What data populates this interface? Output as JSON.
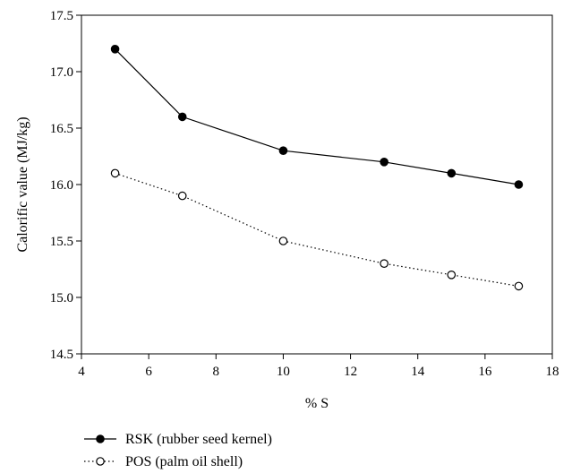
{
  "chart_data": {
    "type": "line",
    "xlabel": "% S",
    "ylabel": "Calorific value (MJ/kg)",
    "xlim": [
      4,
      18
    ],
    "ylim": [
      14.5,
      17.5
    ],
    "xticks": [
      "4",
      "6",
      "8",
      "10",
      "12",
      "14",
      "16",
      "18"
    ],
    "yticks": [
      "14.5",
      "15.0",
      "15.5",
      "16.0",
      "16.5",
      "17.0",
      "17.5"
    ],
    "grid": false,
    "legend_position": "bottom-left",
    "series": [
      {
        "name": "RSK (rubber seed kernel)",
        "line_style": "solid",
        "marker": "filled-circle",
        "x": [
          5,
          7,
          10,
          13,
          15,
          17
        ],
        "y": [
          17.2,
          16.6,
          16.3,
          16.2,
          16.1,
          16.0
        ]
      },
      {
        "name": "POS (palm oil shell)",
        "line_style": "dotted",
        "marker": "open-circle",
        "x": [
          5,
          7,
          10,
          13,
          15,
          17
        ],
        "y": [
          16.1,
          15.9,
          15.5,
          15.3,
          15.2,
          15.1
        ]
      }
    ]
  }
}
